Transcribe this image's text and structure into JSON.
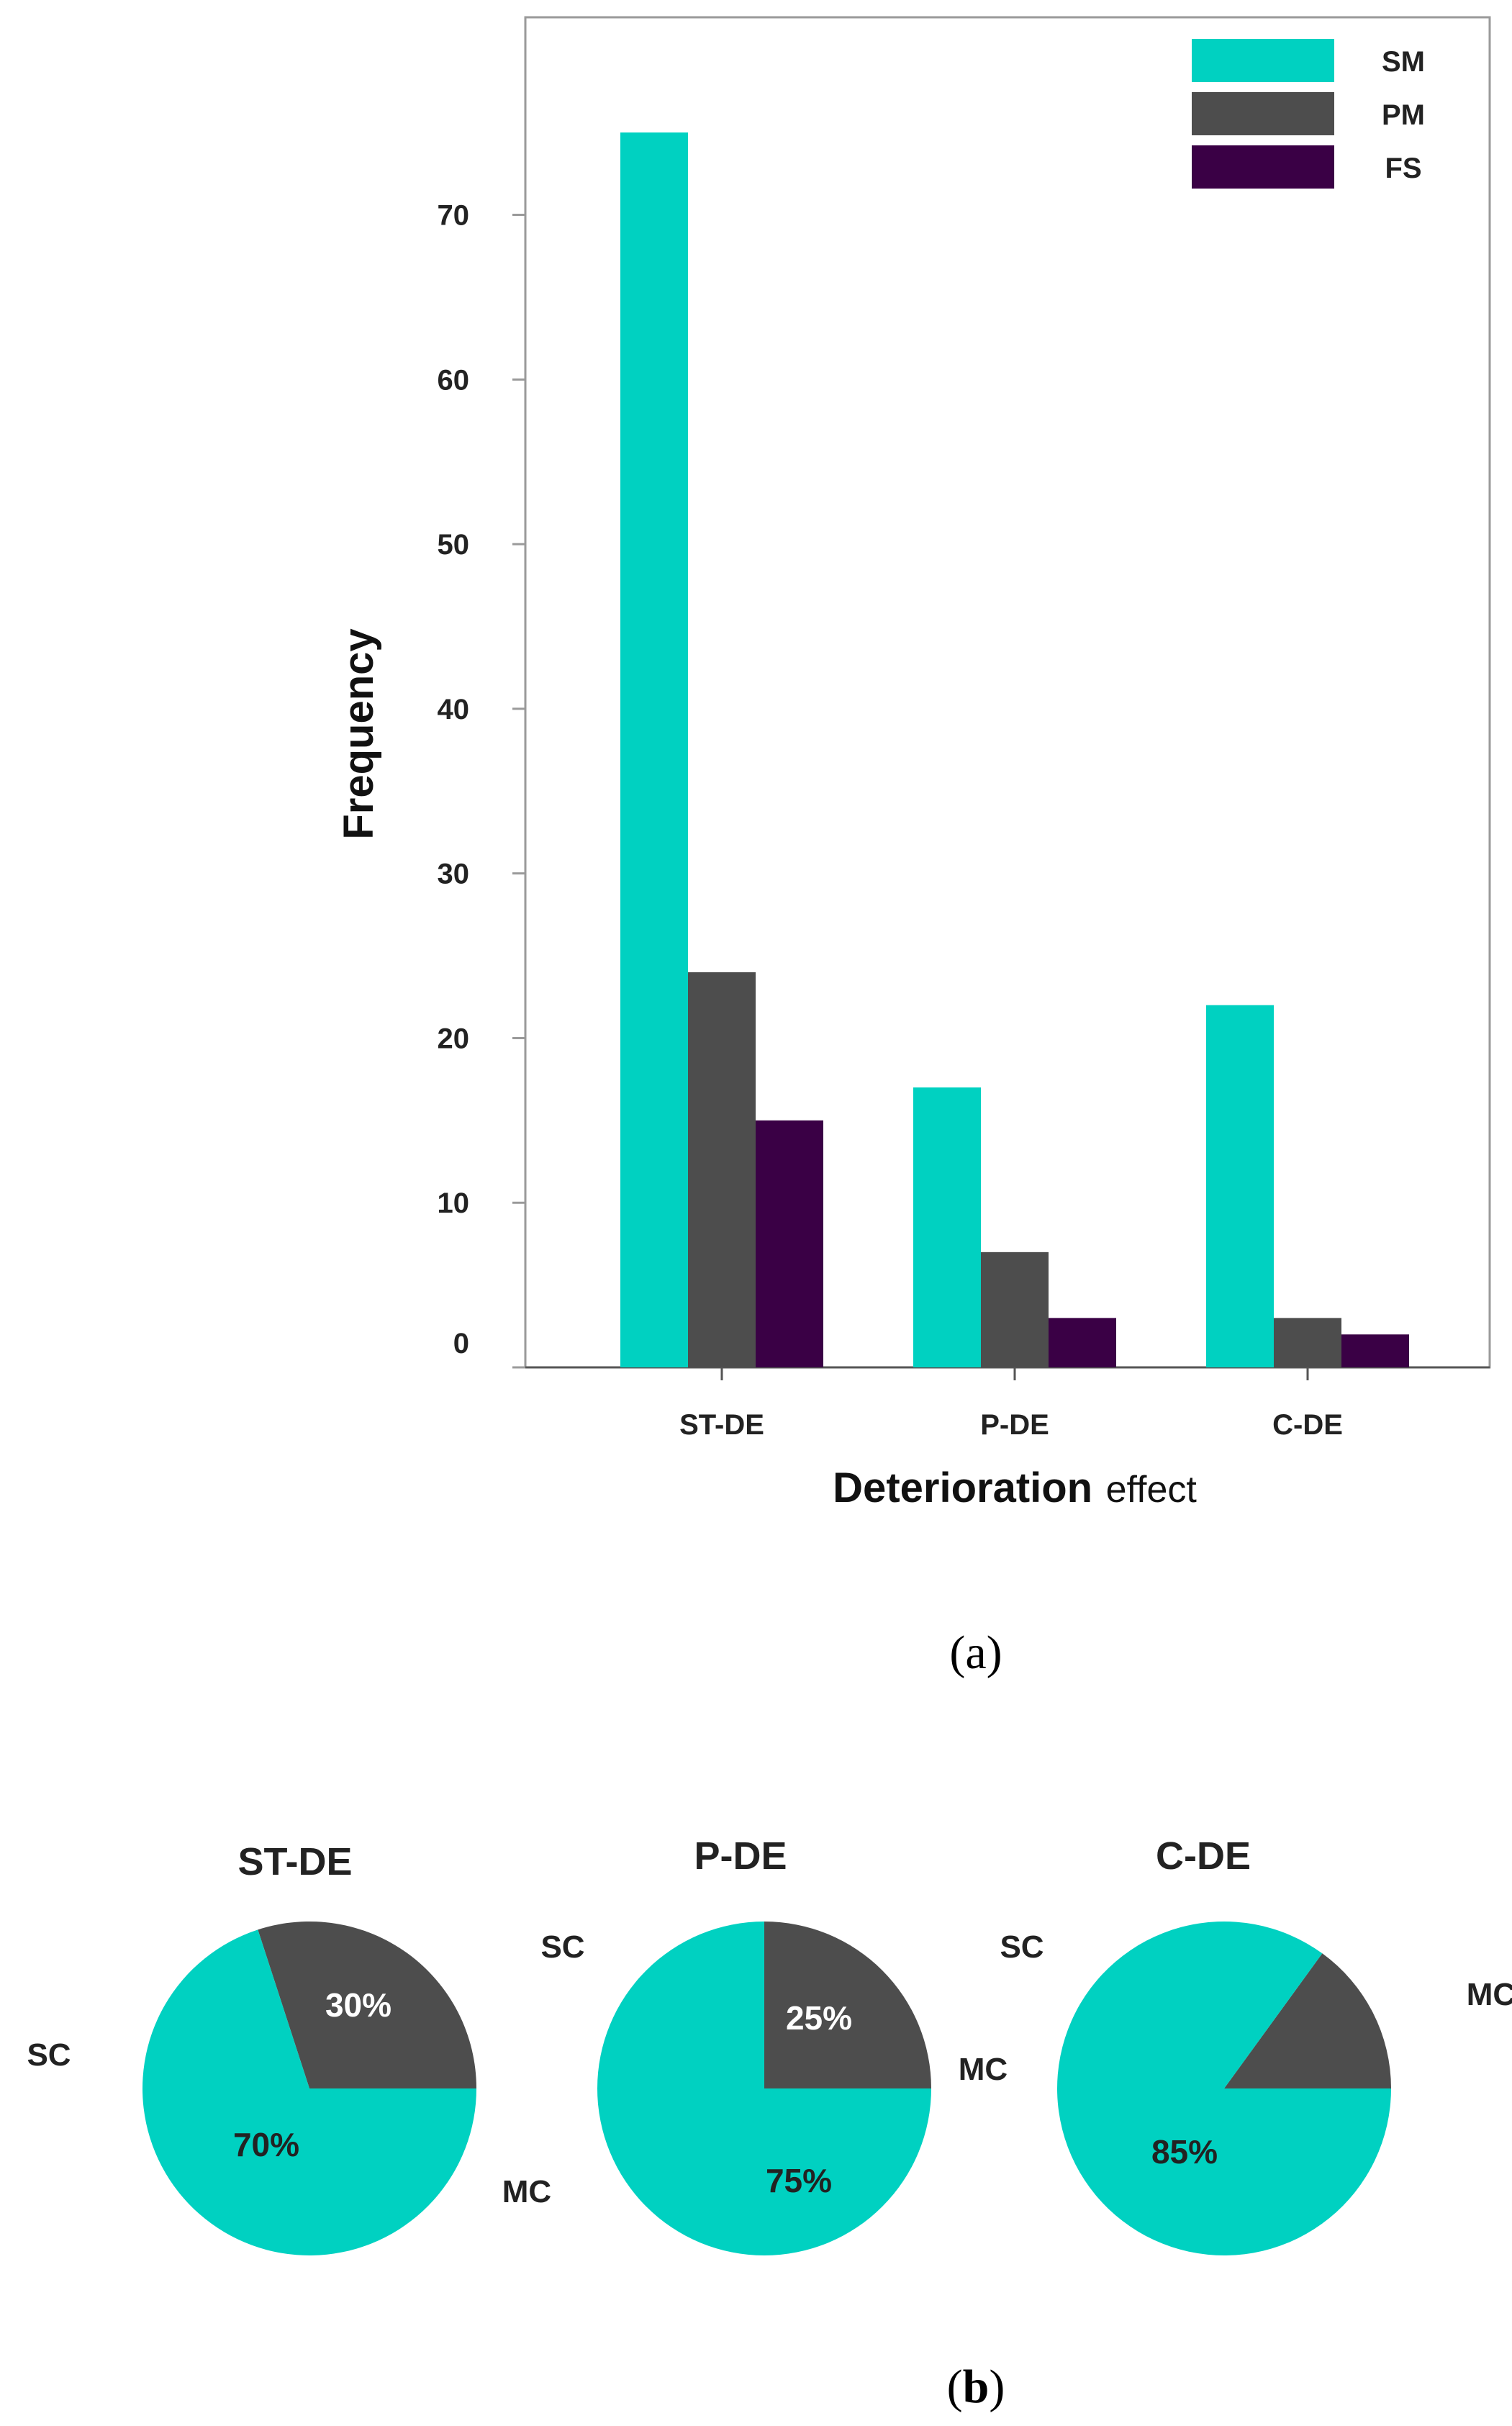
{
  "chart_data": [
    {
      "type": "bar",
      "title": "",
      "xlabel": "Deterioration",
      "xlabel_suffix": "effect",
      "ylabel": "Frequency",
      "ylim": [
        0,
        82
      ],
      "yticks": [
        0,
        10,
        20,
        30,
        40,
        50,
        60,
        70
      ],
      "ytick_labels": [
        "0",
        "10",
        "20",
        "30",
        "40",
        "50",
        "60",
        "70"
      ],
      "grid": false,
      "legend_position": "top-right",
      "categories": [
        "ST-DE",
        "P-DE",
        "C-DE"
      ],
      "series": [
        {
          "name": "SM",
          "color": "#00D1C1",
          "values": [
            75,
            17,
            22
          ]
        },
        {
          "name": "PM",
          "color": "#4D4D4D",
          "values": [
            24,
            7,
            3
          ]
        },
        {
          "name": "FS",
          "color": "#3A0045",
          "values": [
            15,
            3,
            2
          ]
        }
      ]
    },
    {
      "type": "pie",
      "title": "ST-DE",
      "slices": [
        {
          "name": "MC",
          "label": "30%",
          "value": 30,
          "color": "#4D4D4D",
          "text_color": "#FFFFFF"
        },
        {
          "name": "SC",
          "label": "70%",
          "value": 70,
          "color": "#00D1C1",
          "text_color": "#222222"
        }
      ]
    },
    {
      "type": "pie",
      "title": "P-DE",
      "slices": [
        {
          "name": "MC",
          "label": "25%",
          "value": 25,
          "color": "#4D4D4D",
          "text_color": "#FFFFFF"
        },
        {
          "name": "SC",
          "label": "75%",
          "value": 75,
          "color": "#00D1C1",
          "text_color": "#222222"
        }
      ]
    },
    {
      "type": "pie",
      "title": "C-DE",
      "slices": [
        {
          "name": "MC",
          "label": "",
          "value": 15,
          "color": "#4D4D4D",
          "text_color": "#FFFFFF"
        },
        {
          "name": "SC",
          "label": "85%",
          "value": 85,
          "color": "#00D1C1",
          "text_color": "#222222"
        }
      ]
    }
  ],
  "panels": {
    "a": "a",
    "b": "b"
  }
}
